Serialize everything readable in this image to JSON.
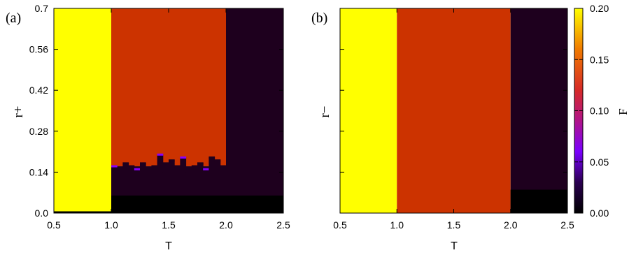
{
  "chart_data": [
    {
      "type": "heatmap",
      "panel_label": "(a)",
      "xlabel": "T",
      "ylabel": "r+",
      "xlim": [
        0.5,
        2.5
      ],
      "ylim": [
        0.0,
        0.7
      ],
      "xticks": [
        "0.5",
        "1.0",
        "1.5",
        "2.0",
        "2.5"
      ],
      "yticks": [
        "0.0",
        "0.14",
        "0.28",
        "0.42",
        "0.56",
        "0.7"
      ],
      "regions": [
        {
          "x": [
            0.5,
            1.0
          ],
          "y": [
            0.0,
            0.7
          ],
          "value": 0.2,
          "note": "bottom strip near r+=0 is 0.0"
        },
        {
          "x": [
            1.0,
            2.0
          ],
          "y": [
            0.16,
            0.7
          ],
          "value": 0.115
        },
        {
          "x": [
            1.0,
            2.0
          ],
          "y": [
            0.0,
            0.16
          ],
          "value": 0.01
        },
        {
          "x": [
            2.0,
            2.5
          ],
          "y": [
            0.0,
            0.7
          ],
          "value": 0.01
        }
      ],
      "boundary_T": [
        1.0,
        1.05,
        1.1,
        1.15,
        1.2,
        1.25,
        1.3,
        1.35,
        1.4,
        1.45,
        1.5,
        1.55,
        1.6,
        1.65,
        1.7,
        1.75,
        1.8,
        1.85,
        1.9,
        1.95,
        2.0
      ],
      "boundary_r": [
        0.16,
        0.15,
        0.17,
        0.16,
        0.15,
        0.17,
        0.15,
        0.16,
        0.2,
        0.17,
        0.18,
        0.16,
        0.19,
        0.14,
        0.16,
        0.17,
        0.15,
        0.19,
        0.18,
        0.16,
        0.16
      ]
    },
    {
      "type": "heatmap",
      "panel_label": "(b)",
      "xlabel": "T",
      "ylabel": "r−",
      "xlim": [
        0.5,
        2.5
      ],
      "ylim": [
        0.0,
        0.7
      ],
      "xticks": [
        "0.5",
        "1.0",
        "1.5",
        "2.0",
        "2.5"
      ],
      "regions": [
        {
          "x": [
            0.5,
            1.0
          ],
          "y": [
            0.0,
            0.7
          ],
          "value": 0.2
        },
        {
          "x": [
            1.0,
            2.0
          ],
          "y": [
            0.0,
            0.7
          ],
          "value": 0.115
        },
        {
          "x": [
            2.0,
            2.5
          ],
          "y": [
            0.0,
            0.7
          ],
          "value": 0.01
        }
      ]
    }
  ],
  "colorbar": {
    "label": "F",
    "range": [
      0.0,
      0.2
    ],
    "ticks": [
      "0.00",
      "0.05",
      "0.10",
      "0.15",
      "0.20"
    ],
    "colors": {
      "yellow": "#ffff00",
      "orange_red": "#cc3300",
      "dark_purple": "#1e001e",
      "black": "#000000",
      "violet": "#8800ff"
    }
  }
}
